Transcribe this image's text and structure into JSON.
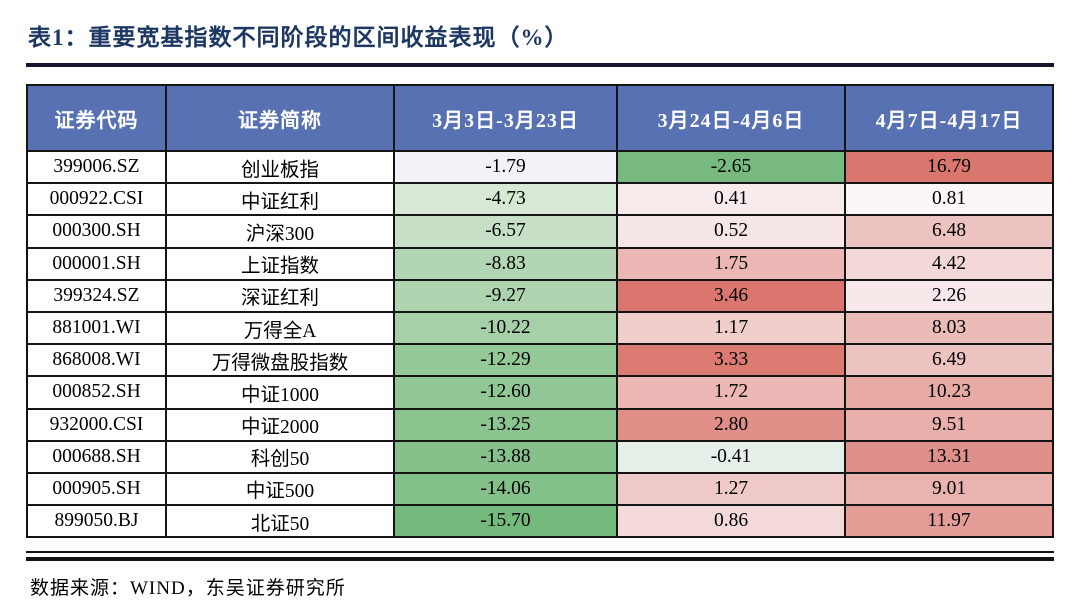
{
  "title": "表1：重要宽基指数不同阶段的区间收益表现（%）",
  "source": "数据来源：WIND，东吴证券研究所",
  "colors": {
    "title_text": "#1c3763",
    "title_rule": "#15152b",
    "header_bg": "#5871b3",
    "header_text": "#ffffff",
    "border": "#141414",
    "footer_rule": "#141414",
    "scale_green_max": "#74ba7c",
    "scale_red_max": "#da766d",
    "scale_mid": "#fcfbfd"
  },
  "table": {
    "headers": [
      "证券代码",
      "证券简称",
      "3月3日-3月23日",
      "3月24日-4月6日",
      "4月7日-4月17日"
    ],
    "rows": [
      {
        "code": "399006.SZ",
        "name": "创业板指",
        "v1": "-1.79",
        "bg1": "#f4f2f8",
        "v2": "-2.65",
        "bg2": "#77b97e",
        "v3": "16.79",
        "bg3": "#d9776e"
      },
      {
        "code": "000922.CSI",
        "name": "中证红利",
        "v1": "-4.73",
        "bg1": "#d7e8d5",
        "v2": "0.41",
        "bg2": "#f8ebeb",
        "v3": "0.81",
        "bg3": "#fbf7f8"
      },
      {
        "code": "000300.SH",
        "name": "沪深300",
        "v1": "-6.57",
        "bg1": "#c6dfc6",
        "v2": "0.52",
        "bg2": "#f6e7e7",
        "v3": "6.48",
        "bg3": "#ecc3c1"
      },
      {
        "code": "000001.SH",
        "name": "上证指数",
        "v1": "-8.83",
        "bg1": "#b2d6b3",
        "v2": "1.75",
        "bg2": "#eab7b4",
        "v3": "4.42",
        "bg3": "#f3d8d7"
      },
      {
        "code": "399324.SZ",
        "name": "深证红利",
        "v1": "-9.27",
        "bg1": "#aed4af",
        "v2": "3.46",
        "bg2": "#da766d",
        "v3": "2.26",
        "bg3": "#f7e9e9"
      },
      {
        "code": "881001.WI",
        "name": "万得全A",
        "v1": "-10.22",
        "bg1": "#a6d0a8",
        "v2": "1.17",
        "bg2": "#f0cecc",
        "v3": "8.03",
        "bg3": "#ebbbb8"
      },
      {
        "code": "868008.WI",
        "name": "万得微盘股指数",
        "v1": "-12.29",
        "bg1": "#94c897",
        "v2": "3.33",
        "bg2": "#db7b72",
        "v3": "6.49",
        "bg3": "#ecc3c1"
      },
      {
        "code": "000852.SH",
        "name": "中证1000",
        "v1": "-12.60",
        "bg1": "#91c695",
        "v2": "1.72",
        "bg2": "#ebb8b5",
        "v3": "10.23",
        "bg3": "#e7aaa5"
      },
      {
        "code": "932000.CSI",
        "name": "中证2000",
        "v1": "-13.25",
        "bg1": "#8cc490",
        "v2": "2.80",
        "bg2": "#e08f88",
        "v3": "9.51",
        "bg3": "#e8afab"
      },
      {
        "code": "000688.SH",
        "name": "科创50",
        "v1": "-13.88",
        "bg1": "#86c18b",
        "v2": "-0.41",
        "bg2": "#e6f0e9",
        "v3": "13.31",
        "bg3": "#e0908a"
      },
      {
        "code": "000905.SH",
        "name": "中证500",
        "v1": "-14.06",
        "bg1": "#84c089",
        "v2": "1.27",
        "bg2": "#efcac8",
        "v3": "9.01",
        "bg3": "#e9b3af"
      },
      {
        "code": "899050.BJ",
        "name": "北证50",
        "v1": "-15.70",
        "bg1": "#74ba7c",
        "v2": "0.86",
        "bg2": "#f3d9d9",
        "v3": "11.97",
        "bg3": "#e39c96"
      }
    ]
  }
}
